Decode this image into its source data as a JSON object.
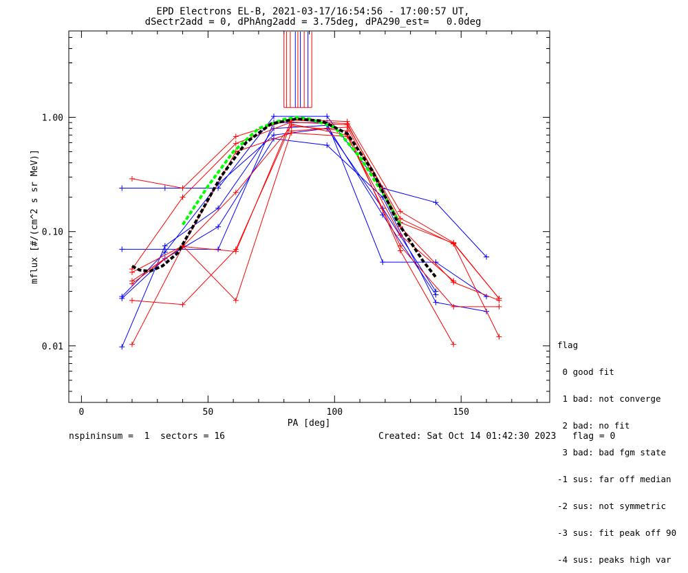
{
  "title": {
    "line1": "EPD Electrons EL-B, 2021-03-17/16:54:56 - 17:00:57 UT,",
    "line2": "dSectr2add = 0, dPhAng2add = 3.75deg, dPA290_est=   0.0deg"
  },
  "footer": {
    "left": "nspininsum =  1  sectors = 16",
    "right": "Created: Sat Oct 14 01:42:30 2023   flag = 0"
  },
  "legend": {
    "title": "flag",
    "items": [
      " 0 good fit",
      " 1 bad: not converge",
      " 2 bad: no fit",
      " 3 bad: bad fgm state",
      "-1 sus: far off median",
      "-2 sus: not symmetric",
      "-3 sus: fit peak off 90",
      "-4 sus: peaks high var"
    ]
  },
  "colors": {
    "blue": "#0000ff",
    "red": "#ff0000",
    "green": "#00ff00",
    "black": "#000000"
  },
  "chart_data": {
    "type": "line",
    "xlabel": "PA [deg]",
    "ylabel": "mflux [#/(cm^2 s sr MeV)]",
    "xlim": [
      -5,
      185
    ],
    "ylim": [
      0.0032,
      5.7
    ],
    "yscale": "log",
    "xticks": [
      0,
      50,
      100,
      150
    ],
    "xtick_labels": [
      "0",
      "50",
      "100",
      "150"
    ],
    "yticks": [
      0.01,
      0.1,
      1.0
    ],
    "ytick_labels": [
      "0.01",
      "0.10",
      "1.00"
    ],
    "series": [
      {
        "color": "blue",
        "points": [
          [
            16,
            0.24
          ],
          [
            33,
            0.24
          ],
          [
            54,
            0.24
          ],
          [
            76,
            1.02
          ],
          [
            97,
            1.02
          ],
          [
            119,
            0.24
          ],
          [
            140,
            0.18
          ],
          [
            160,
            0.06
          ]
        ]
      },
      {
        "color": "blue",
        "points": [
          [
            16,
            0.07
          ],
          [
            33,
            0.07
          ],
          [
            54,
            0.07
          ],
          [
            76,
            0.9
          ],
          [
            97,
            0.9
          ],
          [
            119,
            0.054
          ],
          [
            140,
            0.054
          ],
          [
            160,
            0.027
          ]
        ]
      },
      {
        "color": "blue",
        "points": [
          [
            16,
            0.026
          ],
          [
            33,
            0.058
          ],
          [
            54,
            0.11
          ],
          [
            76,
            0.65
          ],
          [
            97,
            0.57
          ],
          [
            119,
            0.2
          ],
          [
            140,
            0.024
          ],
          [
            160,
            0.02
          ]
        ]
      },
      {
        "color": "blue",
        "points": [
          [
            16,
            0.0098
          ],
          [
            33,
            0.075
          ],
          [
            54,
            0.16
          ],
          [
            76,
            0.8
          ],
          [
            97,
            0.85
          ],
          [
            119,
            0.14
          ],
          [
            140,
            0.028
          ]
        ]
      },
      {
        "color": "blue",
        "points": [
          [
            16,
            0.027
          ],
          [
            33,
            0.066
          ],
          [
            54,
            0.26
          ],
          [
            76,
            0.7
          ],
          [
            97,
            0.8
          ],
          [
            119,
            0.16
          ],
          [
            140,
            0.03
          ]
        ]
      },
      {
        "color": "red",
        "points": [
          [
            20,
            0.29
          ],
          [
            40,
            0.24
          ],
          [
            61,
            0.68
          ],
          [
            83,
            0.96
          ],
          [
            105,
            0.92
          ],
          [
            126,
            0.15
          ],
          [
            147,
            0.08
          ],
          [
            165,
            0.026
          ]
        ]
      },
      {
        "color": "red",
        "points": [
          [
            20,
            0.047
          ],
          [
            40,
            0.2
          ],
          [
            61,
            0.59
          ],
          [
            83,
            0.91
          ],
          [
            105,
            0.86
          ],
          [
            126,
            0.13
          ],
          [
            147,
            0.078
          ],
          [
            165,
            0.012
          ]
        ]
      },
      {
        "color": "red",
        "points": [
          [
            20,
            0.035
          ],
          [
            40,
            0.075
          ],
          [
            61,
            0.025
          ],
          [
            83,
            0.76
          ],
          [
            105,
            0.82
          ],
          [
            126,
            0.11
          ],
          [
            147,
            0.036
          ],
          [
            165,
            0.025
          ]
        ]
      },
      {
        "color": "red",
        "points": [
          [
            20,
            0.025
          ],
          [
            40,
            0.023
          ],
          [
            61,
            0.07
          ],
          [
            83,
            0.87
          ],
          [
            105,
            0.7
          ],
          [
            126,
            0.075
          ],
          [
            147,
            0.022
          ],
          [
            165,
            0.022
          ]
        ]
      },
      {
        "color": "red",
        "points": [
          [
            20,
            0.0103
          ],
          [
            40,
            0.074
          ],
          [
            61,
            0.22
          ],
          [
            83,
            0.84
          ],
          [
            105,
            0.76
          ],
          [
            126,
            0.068
          ],
          [
            147,
            0.0103
          ]
        ]
      },
      {
        "color": "red",
        "points": [
          [
            20,
            0.044
          ],
          [
            40,
            0.075
          ],
          [
            61,
            0.5
          ],
          [
            83,
            0.73
          ],
          [
            105,
            0.68
          ],
          [
            126,
            0.093
          ],
          [
            147,
            0.037
          ]
        ]
      },
      {
        "color": "red",
        "points": [
          [
            20,
            0.037
          ],
          [
            40,
            0.074
          ],
          [
            61,
            0.067
          ],
          [
            83,
            0.95
          ],
          [
            105,
            0.88
          ],
          [
            126,
            0.12
          ],
          [
            147,
            0.079
          ],
          [
            165,
            0.026
          ]
        ]
      }
    ],
    "fit_green": [
      [
        40,
        0.115
      ],
      [
        50,
        0.25
      ],
      [
        60,
        0.5
      ],
      [
        70,
        0.8
      ],
      [
        80,
        0.96
      ],
      [
        85,
        1.0
      ],
      [
        90,
        0.97
      ],
      [
        100,
        0.82
      ],
      [
        110,
        0.45
      ],
      [
        120,
        0.2
      ],
      [
        126,
        0.115
      ]
    ],
    "fit_black": [
      [
        20,
        0.05
      ],
      [
        23,
        0.046
      ],
      [
        27,
        0.045
      ],
      [
        32,
        0.05
      ],
      [
        38,
        0.065
      ],
      [
        45,
        0.12
      ],
      [
        55,
        0.3
      ],
      [
        65,
        0.6
      ],
      [
        75,
        0.88
      ],
      [
        85,
        0.97
      ],
      [
        95,
        0.93
      ],
      [
        105,
        0.72
      ],
      [
        115,
        0.34
      ],
      [
        125,
        0.12
      ],
      [
        135,
        0.055
      ],
      [
        140,
        0.04
      ]
    ],
    "top_bars": [
      {
        "x": 80,
        "color": "red"
      },
      {
        "x": 81,
        "color": "red"
      },
      {
        "x": 82.5,
        "color": "red"
      },
      {
        "x": 84.5,
        "color": "blue"
      },
      {
        "x": 85.5,
        "color": "red"
      },
      {
        "x": 86.5,
        "color": "blue"
      },
      {
        "x": 88,
        "color": "red"
      },
      {
        "x": 89.5,
        "color": "blue"
      },
      {
        "x": 91,
        "color": "red"
      }
    ]
  }
}
